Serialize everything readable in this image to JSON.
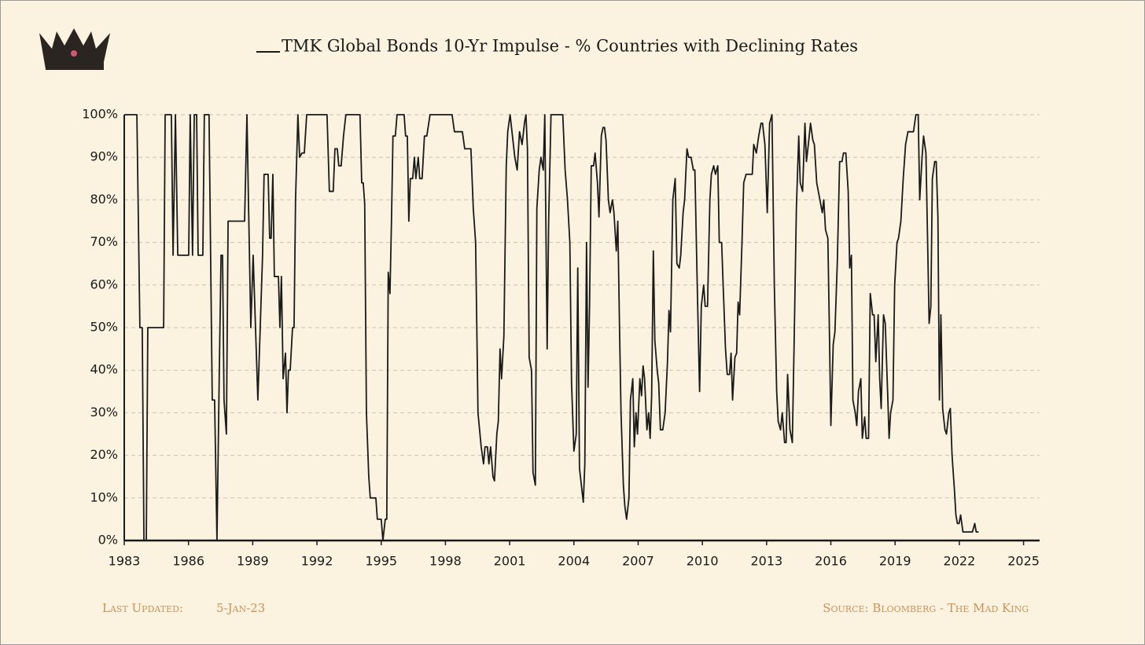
{
  "chart_data": {
    "type": "line",
    "series": [
      {
        "name": "TMK Global Bonds 10-Yr Impulse - % Countries with Declining Rates",
        "color": "#1a1a1a",
        "values": [
          100,
          100,
          50,
          50,
          0,
          0,
          50,
          50,
          100,
          100,
          67,
          100,
          67,
          67,
          100,
          67,
          100,
          100,
          67,
          67,
          100,
          100,
          33,
          33,
          0,
          40,
          67,
          67,
          33,
          25,
          75,
          75,
          100,
          80,
          50,
          67,
          50,
          33,
          50,
          67,
          86,
          86,
          71,
          71,
          86,
          62,
          62,
          50,
          62,
          38,
          44,
          30,
          40,
          40,
          50,
          50,
          80,
          100,
          90,
          91,
          91,
          100,
          100,
          82,
          82,
          92,
          92,
          88,
          88,
          95,
          100,
          100,
          84,
          84,
          79,
          30,
          15,
          10,
          10,
          5,
          5,
          0,
          5,
          5,
          63,
          58,
          75,
          95,
          95,
          100,
          100,
          95,
          95,
          75,
          85,
          85,
          90,
          85,
          90,
          85,
          85,
          95,
          95,
          100,
          100,
          96,
          96,
          92,
          92,
          78,
          70,
          30,
          22,
          18,
          22,
          22,
          18,
          22,
          15,
          14,
          25,
          28,
          45,
          38,
          48,
          88,
          96,
          100,
          95,
          90,
          87,
          96,
          93,
          98,
          100,
          92,
          43,
          40,
          16,
          13,
          78,
          87,
          90,
          87,
          100,
          45,
          75,
          100,
          100,
          87,
          80,
          70,
          37,
          21,
          25,
          64,
          17,
          12,
          9,
          18,
          70,
          36,
          55,
          88,
          88,
          91,
          84,
          76,
          95,
          97,
          97,
          94,
          80,
          77,
          80,
          77,
          68,
          75,
          50,
          30,
          13,
          8,
          5,
          10,
          33,
          38,
          22,
          30,
          25,
          38,
          34,
          41,
          38,
          26,
          30,
          24,
          34,
          68,
          47,
          40,
          37,
          26,
          26,
          30,
          42,
          54,
          49,
          80,
          85,
          65,
          64,
          67,
          77,
          80,
          92,
          90,
          90,
          87,
          87,
          60,
          35,
          55,
          60,
          55,
          55,
          80,
          86,
          88,
          86,
          88,
          70,
          70,
          60,
          45,
          39,
          39,
          44,
          33,
          43,
          44,
          56,
          53,
          70,
          84,
          86,
          86,
          93,
          91,
          95,
          98,
          98,
          93,
          77,
          98,
          100,
          60,
          35,
          28,
          26,
          30,
          23,
          23,
          39,
          26,
          23,
          45,
          78,
          95,
          84,
          82,
          98,
          89,
          94,
          98,
          94,
          93,
          84,
          80,
          77,
          80,
          73,
          71,
          50,
          27,
          46,
          49,
          65,
          89,
          89,
          91,
          91,
          82,
          64,
          67,
          33,
          30,
          27,
          35,
          38,
          24,
          29,
          24,
          24,
          58,
          53,
          53,
          42,
          53,
          38,
          31,
          53,
          51,
          35,
          24,
          30,
          33,
          60,
          70,
          71,
          75,
          85,
          93,
          96,
          96,
          100,
          100,
          80,
          90,
          95,
          91,
          70,
          51,
          55,
          85,
          89,
          89,
          76,
          33,
          53,
          31,
          26,
          25,
          30,
          31,
          20,
          12,
          6,
          4,
          4,
          6,
          2,
          2,
          4,
          2,
          2
        ]
      }
    ],
    "x": [
      1983.0,
      1983.59,
      1983.73,
      1983.84,
      1983.92,
      1984.03,
      1984.1,
      1984.84,
      1984.91,
      1985.2,
      1985.28,
      1985.39,
      1985.5,
      1986.01,
      1986.08,
      1986.19,
      1986.27,
      1986.38,
      1986.45,
      1986.67,
      1986.74,
      1986.96,
      1987.11,
      1987.22,
      1987.33,
      1987.44,
      1987.52,
      1987.59,
      1987.66,
      1987.77,
      1987.85,
      1988.62,
      1988.73,
      1988.8,
      1988.91,
      1989.02,
      1989.13,
      1989.24,
      1989.35,
      1989.46,
      1989.53,
      1989.72,
      1989.79,
      1989.86,
      1989.94,
      1990.01,
      1990.2,
      1990.27,
      1990.34,
      1990.42,
      1990.53,
      1990.6,
      1990.67,
      1990.75,
      1990.86,
      1990.93,
      1991.0,
      1991.11,
      1991.19,
      1991.3,
      1991.41,
      1991.52,
      1992.47,
      1992.58,
      1992.76,
      1992.84,
      1992.95,
      1993.02,
      1993.13,
      1993.24,
      1993.35,
      1994.01,
      1994.09,
      1994.16,
      1994.23,
      1994.31,
      1994.42,
      1994.49,
      1994.75,
      1994.82,
      1995.0,
      1995.08,
      1995.19,
      1995.26,
      1995.33,
      1995.41,
      1995.48,
      1995.55,
      1995.66,
      1995.74,
      1996.07,
      1996.14,
      1996.22,
      1996.29,
      1996.36,
      1996.47,
      1996.55,
      1996.62,
      1996.73,
      1996.8,
      1996.91,
      1997.02,
      1997.13,
      1997.28,
      1998.31,
      1998.42,
      1998.79,
      1998.9,
      1999.19,
      1999.3,
      1999.41,
      1999.52,
      1999.67,
      1999.78,
      1999.85,
      1999.96,
      2000.03,
      2000.11,
      2000.22,
      2000.29,
      2000.4,
      2000.47,
      2000.55,
      2000.62,
      2000.73,
      2000.84,
      2000.91,
      2001.02,
      2001.13,
      2001.24,
      2001.35,
      2001.46,
      2001.58,
      2001.69,
      2001.76,
      2001.83,
      2001.91,
      2002.02,
      2002.09,
      2002.2,
      2002.27,
      2002.38,
      2002.46,
      2002.57,
      2002.64,
      2002.75,
      2002.82,
      2002.93,
      2003.48,
      2003.59,
      2003.7,
      2003.81,
      2003.89,
      2004.0,
      2004.11,
      2004.18,
      2004.26,
      2004.37,
      2004.44,
      2004.51,
      2004.59,
      2004.66,
      2004.73,
      2004.81,
      2004.92,
      2004.99,
      2005.1,
      2005.17,
      2005.28,
      2005.36,
      2005.43,
      2005.5,
      2005.61,
      2005.69,
      2005.8,
      2005.87,
      2005.98,
      2006.05,
      2006.13,
      2006.2,
      2006.31,
      2006.38,
      2006.46,
      2006.57,
      2006.64,
      2006.75,
      2006.82,
      2006.9,
      2006.97,
      2007.08,
      2007.16,
      2007.23,
      2007.3,
      2007.41,
      2007.49,
      2007.56,
      2007.63,
      2007.71,
      2007.78,
      2007.89,
      2007.96,
      2008.04,
      2008.15,
      2008.26,
      2008.37,
      2008.44,
      2008.51,
      2008.62,
      2008.73,
      2008.81,
      2008.92,
      2008.99,
      2009.1,
      2009.17,
      2009.28,
      2009.36,
      2009.47,
      2009.58,
      2009.65,
      2009.76,
      2009.87,
      2009.95,
      2010.06,
      2010.13,
      2010.24,
      2010.35,
      2010.42,
      2010.53,
      2010.61,
      2010.72,
      2010.79,
      2010.9,
      2010.97,
      2011.08,
      2011.16,
      2011.27,
      2011.34,
      2011.41,
      2011.52,
      2011.6,
      2011.67,
      2011.74,
      2011.85,
      2011.93,
      2012.04,
      2012.33,
      2012.4,
      2012.52,
      2012.63,
      2012.74,
      2012.81,
      2012.92,
      2013.03,
      2013.14,
      2013.25,
      2013.36,
      2013.47,
      2013.54,
      2013.65,
      2013.73,
      2013.84,
      2013.91,
      2013.98,
      2014.09,
      2014.2,
      2014.28,
      2014.39,
      2014.5,
      2014.57,
      2014.68,
      2014.79,
      2014.86,
      2014.97,
      2015.05,
      2015.16,
      2015.23,
      2015.34,
      2015.49,
      2015.6,
      2015.67,
      2015.75,
      2015.86,
      2015.93,
      2016.0,
      2016.11,
      2016.19,
      2016.3,
      2016.41,
      2016.52,
      2016.59,
      2016.7,
      2016.81,
      2016.88,
      2016.96,
      2017.03,
      2017.14,
      2017.21,
      2017.29,
      2017.4,
      2017.47,
      2017.58,
      2017.65,
      2017.76,
      2017.84,
      2017.95,
      2018.02,
      2018.1,
      2018.21,
      2018.28,
      2018.35,
      2018.46,
      2018.54,
      2018.65,
      2018.72,
      2018.79,
      2018.9,
      2018.98,
      2019.09,
      2019.16,
      2019.27,
      2019.38,
      2019.49,
      2019.6,
      2019.86,
      2019.97,
      2020.08,
      2020.15,
      2020.26,
      2020.33,
      2020.44,
      2020.52,
      2020.59,
      2020.67,
      2020.74,
      2020.85,
      2020.92,
      2021.0,
      2021.07,
      2021.14,
      2021.22,
      2021.33,
      2021.4,
      2021.51,
      2021.58,
      2021.66,
      2021.77,
      2021.84,
      2021.91,
      2021.99,
      2022.06,
      2022.17,
      2022.61,
      2022.72,
      2022.79,
      2022.9
    ],
    "xlim": [
      1983,
      2025.75
    ],
    "xticks": [
      1983,
      1986,
      1989,
      1992,
      1995,
      1998,
      2001,
      2004,
      2007,
      2010,
      2013,
      2016,
      2019,
      2022,
      2025
    ],
    "ylim": [
      0,
      100
    ],
    "yticks": [
      {
        "value": 0,
        "label": "0%"
      },
      {
        "value": 10,
        "label": "10%"
      },
      {
        "value": 20,
        "label": "20%"
      },
      {
        "value": 30,
        "label": "30%"
      },
      {
        "value": 40,
        "label": "40%"
      },
      {
        "value": 50,
        "label": "50%"
      },
      {
        "value": 60,
        "label": "60%"
      },
      {
        "value": 70,
        "label": "70%"
      },
      {
        "value": 80,
        "label": "80%"
      },
      {
        "value": 90,
        "label": "90%"
      },
      {
        "value": 100,
        "label": "100%"
      }
    ],
    "grid": true,
    "legend": "top",
    "footer_left_label": "Last Updated:",
    "footer_left_value": "5-Jan-23",
    "footer_right": "Source: Bloomberg - The Mad King"
  }
}
